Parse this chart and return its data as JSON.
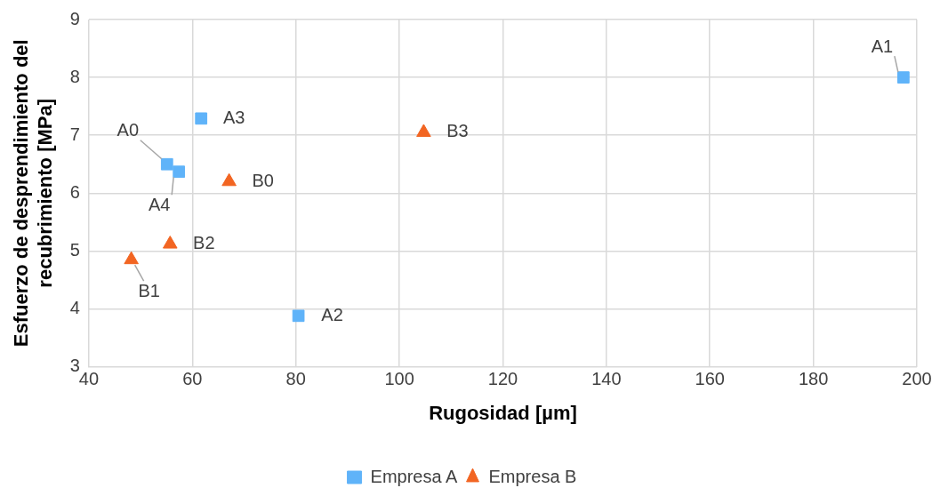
{
  "chart_data": {
    "type": "scatter",
    "xlabel": "Rugosidad [µm]",
    "ylabel": "Esfuerzo de desprendimiento del recubrimiento [MPa]",
    "xlim": [
      40,
      200
    ],
    "xticks": [
      40,
      60,
      80,
      100,
      120,
      140,
      160,
      180,
      200
    ],
    "ylim": [
      3,
      9
    ],
    "yticks": [
      3,
      4,
      5,
      6,
      7,
      8,
      9
    ],
    "grid": true,
    "legend": "bottom",
    "series": [
      {
        "name": "Empresa A",
        "color": "#5fb3f9",
        "marker": "square",
        "x": [
          55.1,
          197.4,
          80.5,
          61.7,
          57.4
        ],
        "values": [
          6.5,
          8.0,
          3.88,
          7.29,
          6.37
        ]
      },
      {
        "name": "Empresa B",
        "color": "#f26522",
        "marker": "triangle",
        "x": [
          67.1,
          48.2,
          55.7,
          104.7
        ],
        "values": [
          6.2,
          4.85,
          5.12,
          7.05
        ]
      }
    ],
    "annotations": [
      {
        "text": "A0",
        "x": 55.1,
        "y": 6.5
      },
      {
        "text": "A1",
        "x": 197.4,
        "y": 8.0
      },
      {
        "text": "A2",
        "x": 80.5,
        "y": 3.88
      },
      {
        "text": "A3",
        "x": 61.7,
        "y": 7.29
      },
      {
        "text": "A4",
        "x": 57.4,
        "y": 6.37
      },
      {
        "text": "B0",
        "x": 67.1,
        "y": 6.2
      },
      {
        "text": "B1",
        "x": 48.2,
        "y": 4.85
      },
      {
        "text": "B2",
        "x": 55.7,
        "y": 5.12
      },
      {
        "text": "B3",
        "x": 104.7,
        "y": 7.05
      }
    ]
  }
}
